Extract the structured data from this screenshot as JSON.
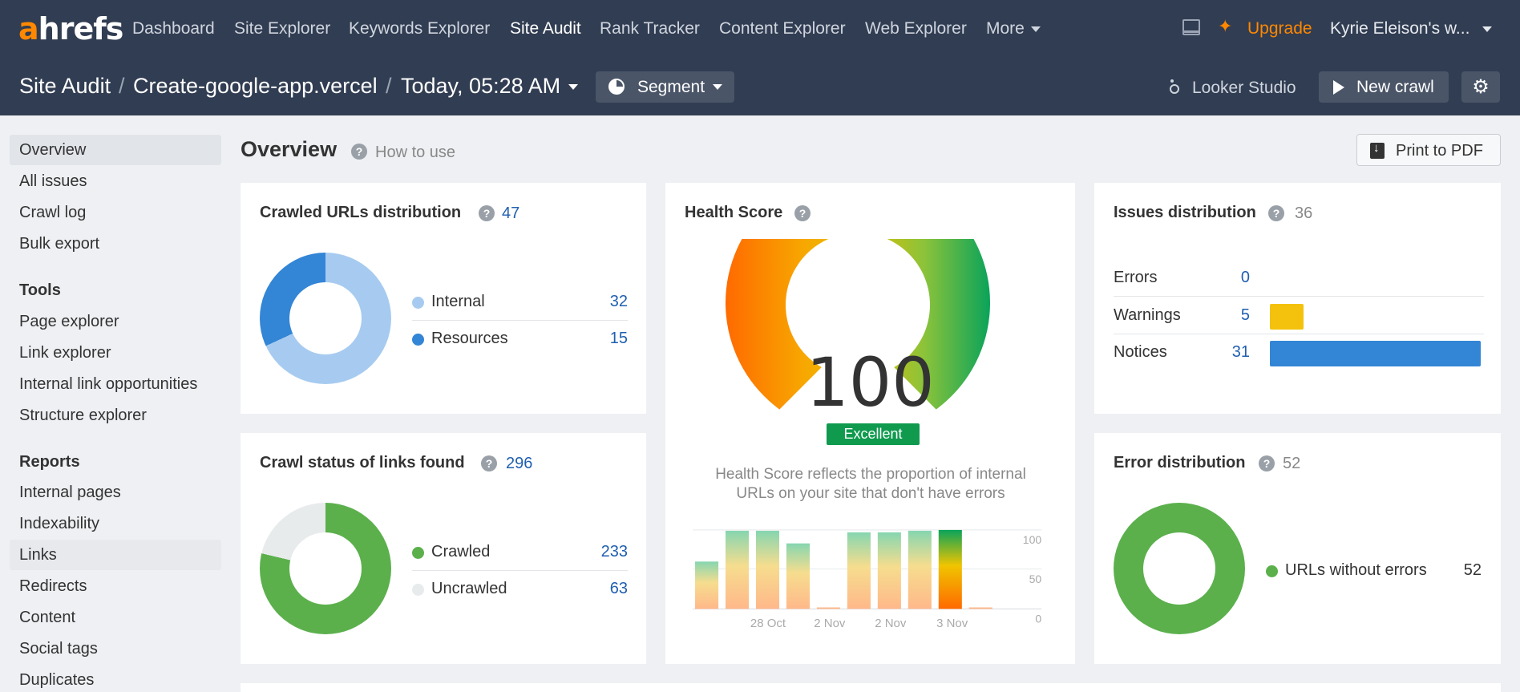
{
  "nav": {
    "logo_a": "a",
    "logo_rest": "hrefs",
    "links": [
      "Dashboard",
      "Site Explorer",
      "Keywords Explorer",
      "Site Audit",
      "Rank Tracker",
      "Content Explorer",
      "Web Explorer",
      "More"
    ],
    "upgrade": "Upgrade",
    "account": "Kyrie Eleison's w..."
  },
  "subheader": {
    "crumb1": "Site Audit",
    "crumb2": "Create-google-app.vercel",
    "crumb3": "Today, 05:28 AM",
    "sep": "/",
    "segment": "Segment",
    "looker": "Looker Studio",
    "new_crawl": "New crawl"
  },
  "sidebar": {
    "items": [
      "Overview",
      "All issues",
      "Crawl log",
      "Bulk export"
    ],
    "tools_title": "Tools",
    "tools": [
      "Page explorer",
      "Link explorer",
      "Internal link opportunities",
      "Structure explorer"
    ],
    "reports_title": "Reports",
    "reports": [
      "Internal pages",
      "Indexability",
      "Links",
      "Redirects",
      "Content",
      "Social tags",
      "Duplicates"
    ]
  },
  "main": {
    "title": "Overview",
    "how_to": "How to use",
    "print": "Print to PDF",
    "help_glyph": "?"
  },
  "crawled_urls": {
    "title": "Crawled URLs distribution",
    "count": "47",
    "rows": [
      {
        "name": "Internal",
        "value": "32"
      },
      {
        "name": "Resources",
        "value": "15"
      }
    ]
  },
  "crawl_status": {
    "title": "Crawl status of links found",
    "count": "296",
    "rows": [
      {
        "name": "Crawled",
        "value": "233"
      },
      {
        "name": "Uncrawled",
        "value": "63"
      }
    ]
  },
  "health": {
    "title": "Health Score",
    "score": "100",
    "badge": "Excellent",
    "desc": "Health Score reflects the proportion of internal URLs on your site that don't have errors"
  },
  "issues": {
    "title": "Issues distribution",
    "count": "36",
    "rows": [
      {
        "name": "Errors",
        "value": "0"
      },
      {
        "name": "Warnings",
        "value": "5"
      },
      {
        "name": "Notices",
        "value": "31"
      }
    ]
  },
  "errors_dist": {
    "title": "Error distribution",
    "count": "52",
    "row": {
      "name": "URLs without errors",
      "value": "52"
    }
  },
  "colors": {
    "nav_bg": "#313d52",
    "accent_orange": "#ff8800",
    "link_blue": "#1f5fb0",
    "internal": "#a7cbf0",
    "resources": "#3385d6",
    "crawled": "#5bb04c",
    "uncrawled": "#e8ebec",
    "warning": "#f4c20d",
    "notice": "#3385d6",
    "excellent": "#0f9a4e"
  },
  "chart_data": {
    "type": "bar",
    "categories": [
      "",
      "",
      "",
      "",
      "",
      "",
      "",
      "",
      "",
      ""
    ],
    "x_tick_labels": [
      "28 Oct",
      "2 Nov",
      "2 Nov",
      "3 Nov"
    ],
    "values": [
      60,
      99,
      99,
      83,
      1,
      97,
      97,
      99,
      100,
      1
    ],
    "ylim": [
      0,
      100
    ],
    "y_ticks": [
      0,
      50,
      100
    ],
    "grid": true
  }
}
